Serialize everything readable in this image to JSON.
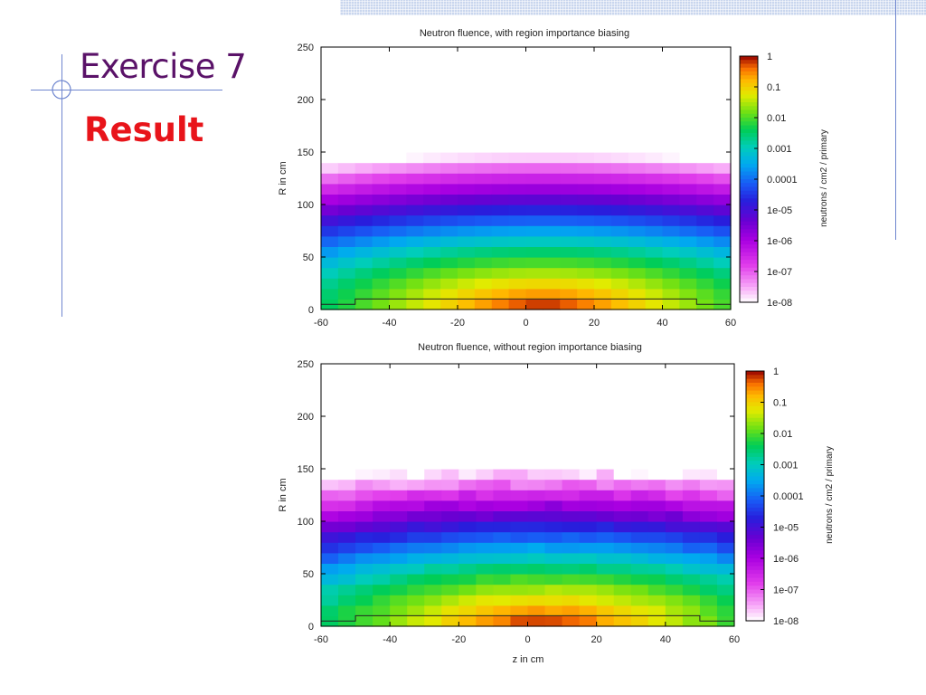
{
  "slide": {
    "title": "Exercise 7",
    "subtitle": "Result",
    "accent_color": "#5a1268",
    "subtitle_color": "#e8141a",
    "rule_color": "#6f86cf"
  },
  "chart_data": [
    {
      "type": "heatmap",
      "title": "Neutron fluence, with region importance biasing",
      "xlabel": "",
      "ylabel": "R in cm",
      "xlim": [
        -60,
        60
      ],
      "ylim": [
        0,
        250
      ],
      "xticks": [
        "-60",
        "-40",
        "-20",
        "0",
        "20",
        "40",
        "60"
      ],
      "yticks": [
        "0",
        "50",
        "100",
        "150",
        "200",
        "250"
      ],
      "colorbar": {
        "label": "neutrons / cm2 / primary",
        "scale": "log",
        "ticks": [
          "1",
          "0.1",
          "0.01",
          "0.001",
          "0.0001",
          "1e-05",
          "1e-06",
          "1e-07",
          "1e-08"
        ]
      },
      "data_extent": {
        "z": [
          -60,
          60
        ],
        "r": [
          0,
          240
        ]
      },
      "peak": {
        "z": 5,
        "r": 0,
        "value": 1
      },
      "min_value": 1e-08,
      "noise": false
    },
    {
      "type": "heatmap",
      "title": "Neutron fluence, without region importance biasing",
      "xlabel": "z in cm",
      "ylabel": "R in cm",
      "xlim": [
        -60,
        60
      ],
      "ylim": [
        0,
        250
      ],
      "xticks": [
        "-60",
        "-40",
        "-20",
        "0",
        "20",
        "40",
        "60"
      ],
      "yticks": [
        "0",
        "50",
        "100",
        "150",
        "200",
        "250"
      ],
      "colorbar": {
        "label": "neutrons / cm2 / primary",
        "scale": "log",
        "ticks": [
          "1",
          "0.1",
          "0.01",
          "0.001",
          "0.0001",
          "1e-05",
          "1e-06",
          "1e-07",
          "1e-08"
        ]
      },
      "data_extent": {
        "z": [
          -60,
          60
        ],
        "r": [
          0,
          240
        ]
      },
      "peak": {
        "z": 5,
        "r": 0,
        "value": 1
      },
      "min_value": 1e-08,
      "noise": true
    }
  ]
}
